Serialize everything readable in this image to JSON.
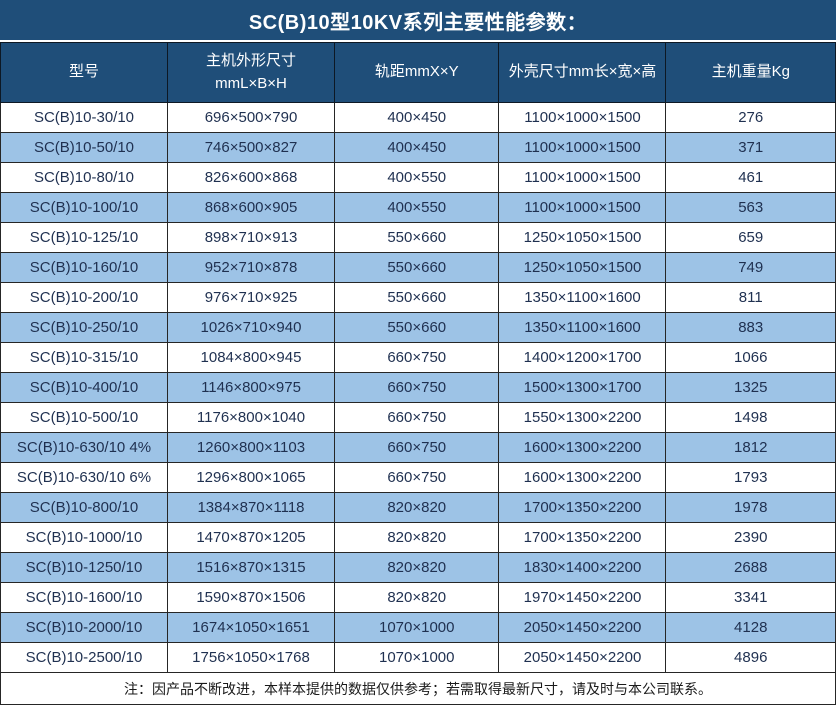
{
  "title": "SC(B)10型10KV系列主要性能参数：",
  "colors": {
    "header_bg": "#1F4E79",
    "header_text": "#FFFFFF",
    "row_bg": "#FFFFFF",
    "row_alt_bg": "#9DC3E6",
    "body_text": "#1F3050",
    "border": "#262626",
    "note_text": "#1A1A1A"
  },
  "header": {
    "col1": "型号",
    "col2_line1": "主机外形尺寸",
    "col2_line2": "mmL×B×H",
    "col3": "轨距mmX×Y",
    "col4": "外壳尺寸mm长×宽×高",
    "col5": "主机重量Kg"
  },
  "note": "注：因产品不断改进，本样本提供的数据仅供参考；若需取得最新尺寸，请及时与本公司联系。",
  "chart_data": {
    "type": "table",
    "title": "SC(B)10型10KV系列主要性能参数：",
    "columns": [
      "型号",
      "主机外形尺寸 mmL×B×H",
      "轨距mmX×Y",
      "外壳尺寸mm长×宽×高",
      "主机重量Kg"
    ],
    "rows": [
      [
        "SC(B)10-30/10",
        "696×500×790",
        "400×450",
        "1100×1000×1500",
        "276"
      ],
      [
        "SC(B)10-50/10",
        "746×500×827",
        "400×450",
        "1100×1000×1500",
        "371"
      ],
      [
        "SC(B)10-80/10",
        "826×600×868",
        "400×550",
        "1100×1000×1500",
        "461"
      ],
      [
        "SC(B)10-100/10",
        "868×600×905",
        "400×550",
        "1100×1000×1500",
        "563"
      ],
      [
        "SC(B)10-125/10",
        "898×710×913",
        "550×660",
        "1250×1050×1500",
        "659"
      ],
      [
        "SC(B)10-160/10",
        "952×710×878",
        "550×660",
        "1250×1050×1500",
        "749"
      ],
      [
        "SC(B)10-200/10",
        "976×710×925",
        "550×660",
        "1350×1100×1600",
        "811"
      ],
      [
        "SC(B)10-250/10",
        "1026×710×940",
        "550×660",
        "1350×1100×1600",
        "883"
      ],
      [
        "SC(B)10-315/10",
        "1084×800×945",
        "660×750",
        "1400×1200×1700",
        "1066"
      ],
      [
        "SC(B)10-400/10",
        "1146×800×975",
        "660×750",
        "1500×1300×1700",
        "1325"
      ],
      [
        "SC(B)10-500/10",
        "1176×800×1040",
        "660×750",
        "1550×1300×2200",
        "1498"
      ],
      [
        "SC(B)10-630/10 4%",
        "1260×800×1103",
        "660×750",
        "1600×1300×2200",
        "1812"
      ],
      [
        "SC(B)10-630/10 6%",
        "1296×800×1065",
        "660×750",
        "1600×1300×2200",
        "1793"
      ],
      [
        "SC(B)10-800/10",
        "1384×870×1118",
        "820×820",
        "1700×1350×2200",
        "1978"
      ],
      [
        "SC(B)10-1000/10",
        "1470×870×1205",
        "820×820",
        "1700×1350×2200",
        "2390"
      ],
      [
        "SC(B)10-1250/10",
        "1516×870×1315",
        "820×820",
        "1830×1400×2200",
        "2688"
      ],
      [
        "SC(B)10-1600/10",
        "1590×870×1506",
        "820×820",
        "1970×1450×2200",
        "3341"
      ],
      [
        "SC(B)10-2000/10",
        "1674×1050×1651",
        "1070×1000",
        "2050×1450×2200",
        "4128"
      ],
      [
        "SC(B)10-2500/10",
        "1756×1050×1768",
        "1070×1000",
        "2050×1450×2200",
        "4896"
      ]
    ],
    "note": "注：因产品不断改进，本样本提供的数据仅供参考；若需取得最新尺寸，请及时与本公司联系。",
    "layout": {
      "zebra_striping": true,
      "first_row_bg": "white",
      "alt_row_bg": "light-blue"
    }
  }
}
